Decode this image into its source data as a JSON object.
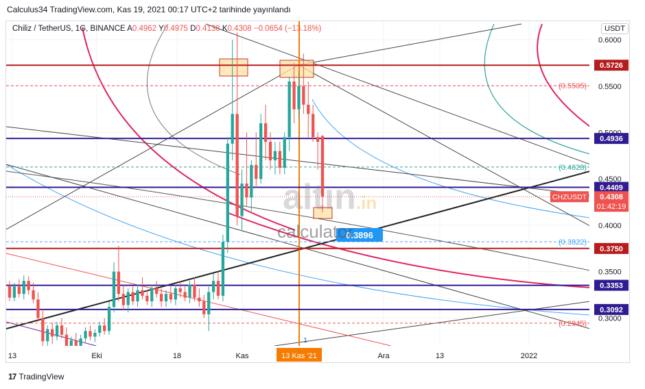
{
  "header": {
    "published": "Calculus34 TradingView.com, Kas 19, 2021 00:17 UTC+2 tarihinde yayınlandı",
    "symbol": "Chiliz / TetherUS, 1G, BINANCE",
    "ohlc": [
      {
        "k": "A",
        "v": "0.4962"
      },
      {
        "k": "Y",
        "v": "0.4975"
      },
      {
        "k": "D",
        "v": "0.4138"
      },
      {
        "k": "K",
        "v": "0.4308"
      }
    ],
    "change": "−0.0654 (−13.18%)",
    "currency_button": "USDT"
  },
  "price_axis": {
    "ticks": [
      "0.6000",
      "0.5500",
      "0.5000",
      "0.4500",
      "0.4000",
      "0.3500",
      "0.3000"
    ]
  },
  "time_axis": {
    "ticks": [
      "13",
      "Eki",
      "18",
      "Kas",
      "Ara",
      "13",
      "2022"
    ],
    "highlight": "13 Kas '21"
  },
  "levels": [
    {
      "label": "0.5726",
      "kind": "solid",
      "color": "#b71c1c"
    },
    {
      "label": "0.4936",
      "kind": "solid",
      "color": "#311b92"
    },
    {
      "label": "0.4409",
      "kind": "solid",
      "color": "#311b92"
    },
    {
      "label": "0.3750",
      "kind": "solid",
      "color": "#b71c1c"
    },
    {
      "label": "0.3353",
      "kind": "solid",
      "color": "#311b92"
    },
    {
      "label": "0.3092",
      "kind": "solid",
      "color": "#311b92"
    },
    {
      "label": "(0.5505)",
      "kind": "dashed",
      "color": "#ef5350"
    },
    {
      "label": "(0.4628)",
      "kind": "dashed",
      "color": "#26a69a"
    },
    {
      "label": "(0.3822)",
      "kind": "dashed",
      "color": "#42a5f5"
    },
    {
      "label": "(0.2945)",
      "kind": "dashed",
      "color": "#ef5350"
    }
  ],
  "current_price": {
    "symbol": "CHZUSDT",
    "price": "0.4308",
    "countdown": "01:42:19",
    "color": "#ef5350"
  },
  "target_label": "0.3896",
  "marker_label": "1",
  "watermark": {
    "brand": "altın",
    "tld": ".in",
    "sub": "calculator"
  },
  "footer": {
    "logo": "17",
    "brand": "TradingView"
  },
  "chart_data": {
    "type": "candlestick",
    "ylim": [
      0.27,
      0.62
    ],
    "candles": [
      [
        0.335,
        0.34,
        0.318,
        0.322
      ],
      [
        0.322,
        0.338,
        0.318,
        0.334
      ],
      [
        0.334,
        0.342,
        0.322,
        0.326
      ],
      [
        0.326,
        0.346,
        0.32,
        0.34
      ],
      [
        0.34,
        0.345,
        0.325,
        0.33
      ],
      [
        0.33,
        0.338,
        0.316,
        0.32
      ],
      [
        0.32,
        0.328,
        0.296,
        0.3
      ],
      [
        0.3,
        0.31,
        0.268,
        0.275
      ],
      [
        0.275,
        0.292,
        0.27,
        0.288
      ],
      [
        0.288,
        0.295,
        0.272,
        0.28
      ],
      [
        0.28,
        0.296,
        0.276,
        0.292
      ],
      [
        0.292,
        0.3,
        0.278,
        0.282
      ],
      [
        0.282,
        0.29,
        0.262,
        0.266
      ],
      [
        0.266,
        0.28,
        0.258,
        0.276
      ],
      [
        0.276,
        0.284,
        0.266,
        0.27
      ],
      [
        0.27,
        0.282,
        0.264,
        0.278
      ],
      [
        0.278,
        0.29,
        0.274,
        0.286
      ],
      [
        0.286,
        0.292,
        0.276,
        0.28
      ],
      [
        0.28,
        0.288,
        0.274,
        0.284
      ],
      [
        0.284,
        0.296,
        0.28,
        0.292
      ],
      [
        0.292,
        0.3,
        0.282,
        0.286
      ],
      [
        0.286,
        0.318,
        0.282,
        0.312
      ],
      [
        0.312,
        0.36,
        0.306,
        0.35
      ],
      [
        0.35,
        0.378,
        0.318,
        0.326
      ],
      [
        0.326,
        0.334,
        0.308,
        0.314
      ],
      [
        0.314,
        0.332,
        0.306,
        0.328
      ],
      [
        0.328,
        0.334,
        0.314,
        0.318
      ],
      [
        0.318,
        0.336,
        0.312,
        0.33
      ],
      [
        0.33,
        0.344,
        0.32,
        0.324
      ],
      [
        0.324,
        0.33,
        0.314,
        0.318
      ],
      [
        0.318,
        0.336,
        0.312,
        0.332
      ],
      [
        0.332,
        0.34,
        0.322,
        0.326
      ],
      [
        0.326,
        0.332,
        0.312,
        0.318
      ],
      [
        0.318,
        0.33,
        0.312,
        0.326
      ],
      [
        0.326,
        0.334,
        0.316,
        0.32
      ],
      [
        0.32,
        0.336,
        0.314,
        0.332
      ],
      [
        0.332,
        0.34,
        0.322,
        0.328
      ],
      [
        0.328,
        0.334,
        0.318,
        0.322
      ],
      [
        0.322,
        0.34,
        0.316,
        0.336
      ],
      [
        0.336,
        0.344,
        0.318,
        0.322
      ],
      [
        0.322,
        0.332,
        0.312,
        0.318
      ],
      [
        0.318,
        0.325,
        0.3,
        0.304
      ],
      [
        0.304,
        0.334,
        0.286,
        0.328
      ],
      [
        0.328,
        0.348,
        0.32,
        0.34
      ],
      [
        0.34,
        0.35,
        0.32,
        0.324
      ],
      [
        0.324,
        0.39,
        0.318,
        0.382
      ],
      [
        0.382,
        0.495,
        0.37,
        0.488
      ],
      [
        0.488,
        0.6,
        0.47,
        0.52
      ],
      [
        0.52,
        0.608,
        0.4,
        0.41
      ],
      [
        0.41,
        0.46,
        0.395,
        0.445
      ],
      [
        0.445,
        0.5,
        0.42,
        0.43
      ],
      [
        0.43,
        0.47,
        0.415,
        0.465
      ],
      [
        0.465,
        0.5,
        0.44,
        0.45
      ],
      [
        0.45,
        0.52,
        0.445,
        0.51
      ],
      [
        0.51,
        0.53,
        0.47,
        0.49
      ],
      [
        0.49,
        0.5,
        0.46,
        0.47
      ],
      [
        0.47,
        0.49,
        0.455,
        0.48
      ],
      [
        0.48,
        0.49,
        0.455,
        0.462
      ],
      [
        0.462,
        0.5,
        0.455,
        0.495
      ],
      [
        0.495,
        0.56,
        0.48,
        0.555
      ],
      [
        0.555,
        0.575,
        0.51,
        0.525
      ],
      [
        0.525,
        0.565,
        0.515,
        0.55
      ],
      [
        0.55,
        0.585,
        0.52,
        0.53
      ],
      [
        0.53,
        0.555,
        0.495,
        0.52
      ],
      [
        0.52,
        0.53,
        0.49,
        0.495
      ],
      [
        0.495,
        0.5,
        0.46,
        0.49
      ],
      [
        0.4962,
        0.4975,
        0.4138,
        0.4308
      ]
    ]
  }
}
